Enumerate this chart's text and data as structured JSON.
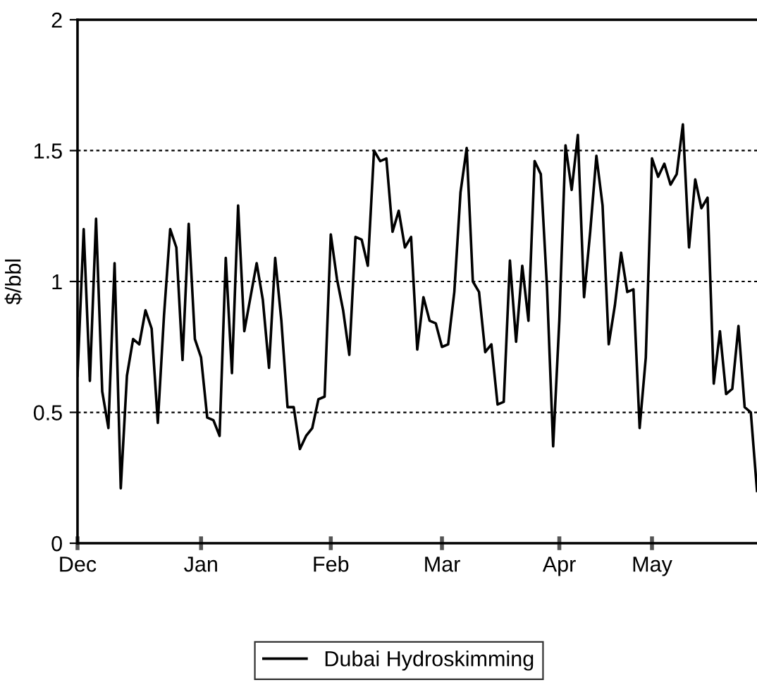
{
  "chart_data": {
    "type": "line",
    "ylabel": "$/bbl",
    "ylim": [
      0,
      2
    ],
    "yticks": [
      0,
      0.5,
      1,
      1.5,
      2
    ],
    "categories": [
      "Dec",
      null,
      null,
      null,
      null,
      null,
      null,
      null,
      null,
      null,
      null,
      null,
      null,
      null,
      null,
      null,
      null,
      null,
      null,
      null,
      "Jan",
      null,
      null,
      null,
      null,
      null,
      null,
      null,
      null,
      null,
      null,
      null,
      null,
      null,
      null,
      null,
      null,
      null,
      null,
      null,
      null,
      "Feb",
      null,
      null,
      null,
      null,
      null,
      null,
      null,
      null,
      null,
      null,
      null,
      null,
      null,
      null,
      null,
      null,
      null,
      "Mar",
      null,
      null,
      null,
      null,
      null,
      null,
      null,
      null,
      null,
      null,
      null,
      null,
      null,
      null,
      null,
      null,
      null,
      null,
      "Apr",
      null,
      null,
      null,
      null,
      null,
      null,
      null,
      null,
      null,
      null,
      null,
      null,
      null,
      null,
      "May",
      null,
      null,
      null,
      null,
      null,
      null,
      null,
      null,
      null,
      null,
      null,
      null,
      null,
      null,
      null,
      null,
      null
    ],
    "grid": "y",
    "legend": "bottom",
    "marker": "none",
    "line_style": "solid",
    "series": [
      {
        "name": "Dubai Hydroskimming",
        "color": "#000000",
        "values": [
          0.64,
          1.2,
          0.62,
          1.24,
          0.58,
          0.44,
          1.07,
          0.21,
          0.64,
          0.78,
          0.76,
          0.89,
          0.82,
          0.46,
          0.87,
          1.2,
          1.13,
          0.7,
          1.22,
          0.78,
          0.71,
          0.48,
          0.47,
          0.41,
          1.09,
          0.65,
          1.29,
          0.81,
          0.94,
          1.07,
          0.93,
          0.67,
          1.09,
          0.85,
          0.52,
          0.52,
          0.36,
          0.41,
          0.44,
          0.55,
          0.56,
          1.18,
          1.01,
          0.89,
          0.72,
          1.17,
          1.16,
          1.06,
          1.5,
          1.46,
          1.47,
          1.19,
          1.27,
          1.13,
          1.17,
          0.74,
          0.94,
          0.85,
          0.84,
          0.75,
          0.76,
          0.96,
          1.34,
          1.51,
          1.0,
          0.96,
          0.73,
          0.76,
          0.53,
          0.54,
          1.08,
          0.77,
          1.06,
          0.85,
          1.46,
          1.41,
          0.98,
          0.37,
          0.85,
          1.52,
          1.35,
          1.56,
          0.94,
          1.19,
          1.48,
          1.29,
          0.76,
          0.91,
          1.11,
          0.96,
          0.97,
          0.44,
          0.71,
          1.47,
          1.4,
          1.45,
          1.37,
          1.41,
          1.6,
          1.13,
          1.39,
          1.28,
          1.32,
          0.61,
          0.81,
          0.57,
          0.59,
          0.83,
          0.52,
          0.5,
          0.2
        ]
      }
    ]
  }
}
